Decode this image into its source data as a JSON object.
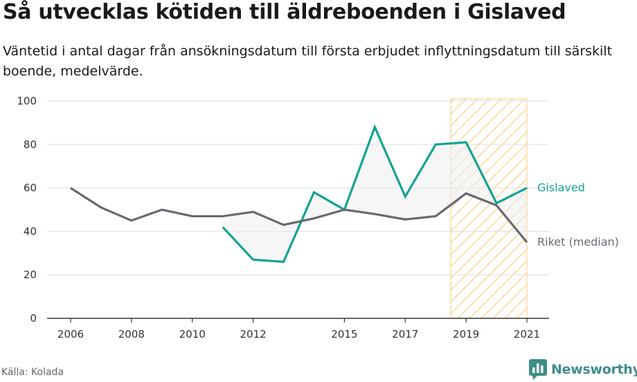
{
  "title": "Så utvecklas kötiden till äldreboenden i Gislaved",
  "subtitle": "Väntetid i antal dagar från ansökningsdatum till första erbjudet inflyttningsdatum till särskilt boende, medelvärde.",
  "source": "Källa: Kolada",
  "brand": "Newsworthy",
  "colors": {
    "gislaved": "#12a393",
    "riket": "#6b6870",
    "highlight": "#f7c970",
    "grid": "#dddddd",
    "fill": "#eeeeee"
  },
  "chart_data": {
    "type": "line",
    "title": "Så utvecklas kötiden till äldreboenden i Gislaved",
    "xlabel": "",
    "ylabel": "",
    "ylim": [
      0,
      100
    ],
    "yticks": [
      "0",
      "20",
      "40",
      "60",
      "80",
      "100"
    ],
    "xticks": [
      "2006",
      "2008",
      "2010",
      "2012",
      "2015",
      "2017",
      "2019",
      "2021"
    ],
    "x": [
      2006,
      2007,
      2008,
      2009,
      2010,
      2011,
      2012,
      2013,
      2014,
      2015,
      2016,
      2017,
      2018,
      2019,
      2020,
      2021
    ],
    "highlight_range": [
      2018.5,
      2021
    ],
    "series": [
      {
        "name": "Gislaved",
        "values": [
          null,
          null,
          null,
          null,
          null,
          42,
          27,
          26,
          58,
          50,
          88,
          56,
          80,
          81,
          53,
          60
        ]
      },
      {
        "name": "Riket (median)",
        "values": [
          60,
          51,
          45,
          50,
          47,
          47,
          49,
          43,
          46,
          50,
          48,
          45.5,
          47,
          57.5,
          52,
          35
        ]
      }
    ]
  }
}
